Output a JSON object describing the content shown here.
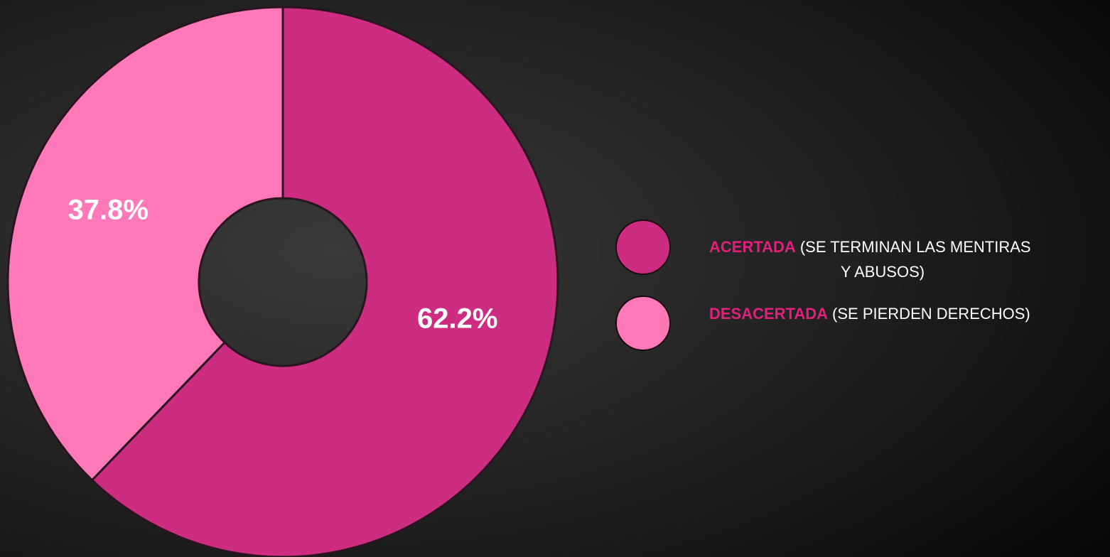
{
  "chart_data": {
    "type": "donut",
    "categories": [
      "ACERTADA",
      "DESACERTADA"
    ],
    "descriptions": [
      [
        "(SE TERMINAN LAS MENTIRAS",
        "Y ABUSOS)"
      ],
      [
        "(SE PIERDEN DERECHOS)"
      ]
    ],
    "values": [
      62.2,
      37.8
    ],
    "value_labels": [
      "62.2%",
      "37.8%"
    ],
    "colors": [
      "#cc2d80",
      "#ff78b8"
    ],
    "legend": "right"
  }
}
